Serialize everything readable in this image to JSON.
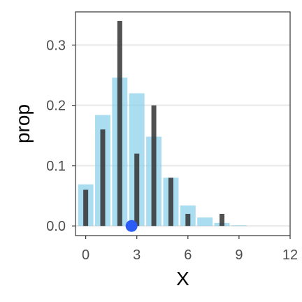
{
  "chart_data": {
    "type": "bar",
    "xlabel": "X",
    "ylabel": "prop",
    "xlim": [
      -0.6,
      12
    ],
    "ylim": [
      -0.016,
      0.355
    ],
    "x_ticks": [
      0,
      3,
      6,
      9,
      12
    ],
    "y_ticks": [
      0.0,
      0.1,
      0.2,
      0.3
    ],
    "x_tick_labels": [
      "0",
      "3",
      "6",
      "9",
      "12"
    ],
    "y_tick_labels": [
      "0.0",
      "0.1",
      "0.2",
      "0.3"
    ],
    "grid": true,
    "series": [
      {
        "role": "reference distribution",
        "color": "#87CEEB",
        "opacity": 0.7,
        "x": [
          0,
          1,
          2,
          3,
          4,
          5,
          6,
          7,
          8,
          9
        ],
        "values": [
          0.069,
          0.184,
          0.246,
          0.22,
          0.148,
          0.08,
          0.034,
          0.014,
          0.005,
          0.001
        ]
      },
      {
        "role": "observed proportions",
        "color": "#333333",
        "opacity": 0.85,
        "x": [
          0,
          1,
          2,
          3,
          4,
          5,
          6,
          8
        ],
        "values": [
          0.06,
          0.16,
          0.34,
          0.12,
          0.2,
          0.08,
          0.02,
          0.02
        ]
      }
    ],
    "point": {
      "x": 2.69,
      "y": 0.0,
      "color": "#2C5CF6"
    }
  }
}
